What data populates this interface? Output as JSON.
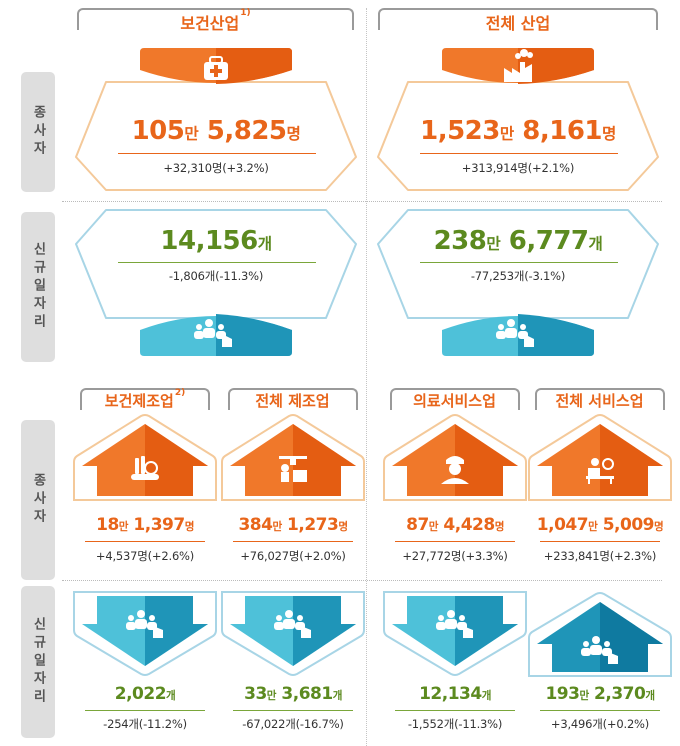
{
  "rows": {
    "employees": "종사자",
    "new_jobs": "신규일자리"
  },
  "top": {
    "health": {
      "title": "보건산업",
      "footnote": "1)",
      "icon": "first-aid-kit-icon",
      "employees": {
        "value_a": "105",
        "unit_a": "만",
        "value_b": " 5,825",
        "unit_b": "명",
        "change": "+32,310명(+3.2%)"
      },
      "new_jobs": {
        "value_a": "14,156",
        "unit_a": "개",
        "value_b": "",
        "unit_b": "",
        "change": "-1,806개(-11.3%)"
      }
    },
    "all": {
      "title": "전체 산업",
      "icon": "factory-icon",
      "employees": {
        "value_a": "1,523",
        "unit_a": "만",
        "value_b": " 8,161",
        "unit_b": "명",
        "change": "+313,914명(+2.1%)"
      },
      "new_jobs": {
        "value_a": "238",
        "unit_a": "만",
        "value_b": " 6,777",
        "unit_b": "개",
        "change": "-77,253개(-3.1%)"
      }
    }
  },
  "bottom": [
    {
      "title": "보건제조업",
      "footnote": "2)",
      "icon": "medical-supplies-icon",
      "employees": {
        "value_a": "18",
        "unit_a": "만",
        "value_b": " 1,397",
        "unit_b": "명",
        "change": "+4,537명(+2.6%)"
      },
      "new_jobs": {
        "value_a": "2,022",
        "unit_a": "개",
        "value_b": "",
        "unit_b": "",
        "change": "-254개(-11.2%)",
        "arrow": "down"
      }
    },
    {
      "title": "전체 제조업",
      "footnote": "",
      "icon": "factory-worker-icon",
      "employees": {
        "value_a": "384",
        "unit_a": "만",
        "value_b": " 1,273",
        "unit_b": "명",
        "change": "+76,027명(+2.0%)"
      },
      "new_jobs": {
        "value_a": "33",
        "unit_a": "만",
        "value_b": " 3,681",
        "unit_b": "개",
        "change": "-67,022개(-16.7%)",
        "arrow": "down"
      }
    },
    {
      "title": "의료서비스업",
      "footnote": "",
      "icon": "nurse-icon",
      "employees": {
        "value_a": "87",
        "unit_a": "만",
        "value_b": " 4,428",
        "unit_b": "명",
        "change": "+27,772명(+3.3%)"
      },
      "new_jobs": {
        "value_a": "12,134",
        "unit_a": "개",
        "value_b": "",
        "unit_b": "",
        "change": "-1,552개(-11.3%)",
        "arrow": "down"
      }
    },
    {
      "title": "전체 서비스업",
      "footnote": "",
      "icon": "dining-service-icon",
      "employees": {
        "value_a": "1,047",
        "unit_a": "만",
        "value_b": " 5,009",
        "unit_b": "명",
        "change": "+233,841명(+2.3%)"
      },
      "new_jobs": {
        "value_a": "193",
        "unit_a": "만",
        "value_b": " 2,370",
        "unit_b": "개",
        "change": "+3,496개(+0.2%)",
        "arrow": "up"
      }
    }
  ],
  "colors": {
    "orange": "#e8651a",
    "orange_light": "#f49a3f",
    "teal": "#1f95b8",
    "teal_light": "#4ec1d9",
    "green": "#5c8a1f",
    "peach_border": "#f4c99a",
    "blue_border": "#a8d5e6"
  }
}
